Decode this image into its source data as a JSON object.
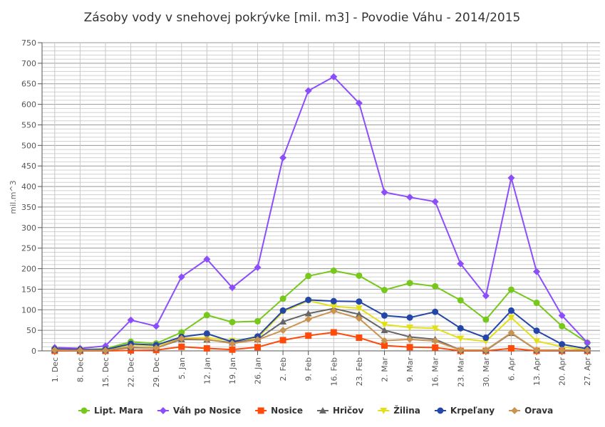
{
  "chart_data": {
    "type": "line",
    "title": "Zásoby vody v snehovej pokrývke [mil. m3] - Povodie Váhu - 2014/2015",
    "xlabel": "",
    "ylabel": "mil.m^3",
    "ylim": [
      0,
      750
    ],
    "yticks": [
      0,
      50,
      100,
      150,
      200,
      250,
      300,
      350,
      400,
      450,
      500,
      550,
      600,
      650,
      700,
      750
    ],
    "grid": true,
    "legend": "bottom",
    "categories": [
      "1. Dec",
      "8. Dec",
      "15. Dec",
      "22. Dec",
      "29. Dec",
      "5. Jan",
      "12. Jan",
      "19. Jan",
      "26. Jan",
      "2. Feb",
      "9. Feb",
      "16. Feb",
      "23. Feb",
      "2. Mar",
      "9. Mar",
      "16. Mar",
      "23. Mar",
      "30. Mar",
      "6. Apr",
      "13. Apr",
      "20. Apr",
      "27. Apr"
    ],
    "series": [
      {
        "name": "Lipt. Mara",
        "color": "#76c81a",
        "marker": "circle",
        "values": [
          5,
          3,
          5,
          22,
          18,
          45,
          87,
          70,
          72,
          127,
          182,
          195,
          183,
          148,
          165,
          157,
          123,
          76,
          149,
          117,
          60,
          20
        ]
      },
      {
        "name": "Váh po Nosice",
        "color": "#8c4dfc",
        "marker": "diamond",
        "values": [
          8,
          6,
          12,
          75,
          60,
          180,
          223,
          154,
          203,
          470,
          633,
          667,
          603,
          386,
          374,
          363,
          212,
          134,
          421,
          193,
          86,
          20
        ]
      },
      {
        "name": "Nosice",
        "color": "#ff4a0a",
        "marker": "square",
        "values": [
          0,
          0,
          0,
          1,
          2,
          10,
          6,
          3,
          9,
          26,
          37,
          45,
          32,
          13,
          9,
          8,
          0,
          0,
          6,
          0,
          0,
          0
        ]
      },
      {
        "name": "Hričov",
        "color": "#666666",
        "marker": "triangle",
        "values": [
          2,
          1,
          1,
          8,
          7,
          28,
          27,
          20,
          28,
          71,
          91,
          103,
          89,
          50,
          34,
          28,
          2,
          1,
          43,
          2,
          1,
          1
        ]
      },
      {
        "name": "Žilina",
        "color": "#e3e01a",
        "marker": "triangle-down",
        "values": [
          3,
          2,
          2,
          15,
          12,
          31,
          32,
          25,
          31,
          95,
          122,
          108,
          104,
          64,
          57,
          55,
          30,
          23,
          81,
          24,
          10,
          2
        ]
      },
      {
        "name": "Krpeľany",
        "color": "#2446a8",
        "marker": "circle",
        "values": [
          4,
          3,
          3,
          17,
          14,
          34,
          42,
          22,
          35,
          98,
          124,
          121,
          120,
          86,
          81,
          95,
          55,
          32,
          98,
          49,
          16,
          5
        ]
      },
      {
        "name": "Orava",
        "color": "#c99350",
        "marker": "diamond",
        "values": [
          2,
          1,
          1,
          10,
          7,
          30,
          28,
          18,
          27,
          50,
          77,
          97,
          79,
          25,
          28,
          24,
          2,
          2,
          44,
          2,
          2,
          2
        ]
      }
    ]
  }
}
